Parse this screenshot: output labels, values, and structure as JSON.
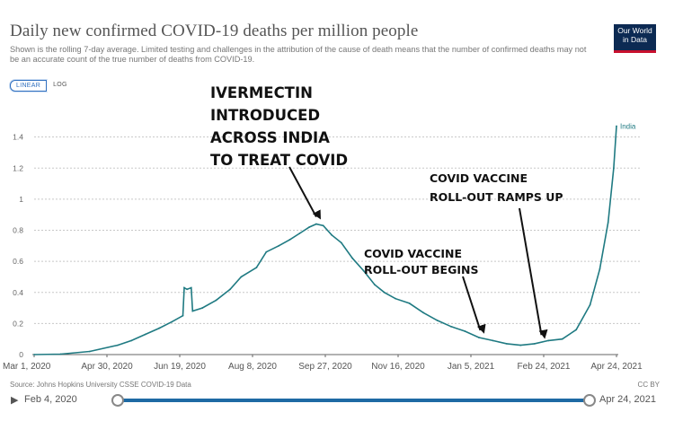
{
  "header": {
    "title": "Daily new confirmed COVID-19 deaths per million people",
    "subtitle": "Shown is the rolling 7-day average. Limited testing and challenges in the attribution of the cause of death means that the number of confirmed deaths may not be an accurate count of the true number of deaths from COVID-19.",
    "logo_line1": "Our World",
    "logo_line2": "in Data",
    "logo_colors": {
      "bg": "#0c2a53",
      "accent": "#c8102e"
    }
  },
  "controls": {
    "linear_label": "LINEAR",
    "log_label": "LOG",
    "selected": "LINEAR"
  },
  "footer": {
    "source": "Source: Johns Hopkins University CSSE COVID-19 Data",
    "license": "CC BY"
  },
  "timeline": {
    "start_label": "Feb 4, 2020",
    "end_label": "Apr 24, 2021",
    "play_icon": "play-icon",
    "track_color": "#1e6aa4"
  },
  "chart_data": {
    "type": "line",
    "title": "Daily new confirmed COVID-19 deaths per million people",
    "scale": "linear",
    "grid": true,
    "xlim": [
      "2020-03-01",
      "2021-04-24"
    ],
    "ylim": [
      0,
      1.6
    ],
    "x_ticks": [
      "Mar 1, 2020",
      "Apr 30, 2020",
      "Jun 19, 2020",
      "Aug 8, 2020",
      "Sep 27, 2020",
      "Nov 16, 2020",
      "Jan 5, 2021",
      "Feb 24, 2021",
      "Apr 24, 2021"
    ],
    "y_ticks": [
      0,
      0.2,
      0.4,
      0.6,
      0.8,
      1,
      1.2,
      1.4
    ],
    "y_tick_labels": [
      "0",
      "0.2",
      "0.4",
      "0.6",
      "0.8",
      "1",
      "1.2",
      "1.4"
    ],
    "line_color": "#1f7a82",
    "series": [
      {
        "name": "India",
        "x": [
          "2020-03-01",
          "2020-03-20",
          "2020-04-10",
          "2020-04-30",
          "2020-05-10",
          "2020-05-20",
          "2020-05-30",
          "2020-06-08",
          "2020-06-16",
          "2020-06-17",
          "2020-06-19",
          "2020-06-22",
          "2020-06-23",
          "2020-06-30",
          "2020-07-10",
          "2020-07-20",
          "2020-07-28",
          "2020-08-08",
          "2020-08-15",
          "2020-08-24",
          "2020-09-01",
          "2020-09-08",
          "2020-09-15",
          "2020-09-20",
          "2020-09-25",
          "2020-10-01",
          "2020-10-08",
          "2020-10-16",
          "2020-10-24",
          "2020-11-01",
          "2020-11-08",
          "2020-11-16",
          "2020-11-26",
          "2020-12-06",
          "2020-12-16",
          "2020-12-26",
          "2021-01-05",
          "2021-01-15",
          "2021-01-25",
          "2021-02-04",
          "2021-02-14",
          "2021-02-24",
          "2021-03-06",
          "2021-03-16",
          "2021-03-26",
          "2021-04-05",
          "2021-04-12",
          "2021-04-18",
          "2021-04-22",
          "2021-04-24"
        ],
        "y": [
          0,
          0.003,
          0.02,
          0.06,
          0.09,
          0.13,
          0.17,
          0.21,
          0.25,
          0.43,
          0.42,
          0.43,
          0.28,
          0.3,
          0.35,
          0.42,
          0.5,
          0.56,
          0.66,
          0.7,
          0.74,
          0.78,
          0.82,
          0.84,
          0.83,
          0.77,
          0.72,
          0.62,
          0.54,
          0.45,
          0.4,
          0.36,
          0.33,
          0.27,
          0.22,
          0.18,
          0.15,
          0.11,
          0.09,
          0.07,
          0.06,
          0.07,
          0.09,
          0.1,
          0.16,
          0.32,
          0.55,
          0.85,
          1.2,
          1.47
        ]
      }
    ],
    "series_label": "India",
    "annotations": [
      {
        "lines": [
          "IVERMECTIN",
          "INTRODUCED",
          "ACROSS INDIA",
          "TO TREAT COVID"
        ],
        "points_to": {
          "x": "2020-09-20",
          "y": 0.84
        }
      },
      {
        "lines": [
          "COVID VACCINE",
          "ROLL-OUT RAMPS UP"
        ],
        "points_to": {
          "x": "2021-03-01",
          "y": 0.08
        }
      },
      {
        "lines": [
          "COVID VACCINE",
          "ROLL-OUT BEGINS"
        ],
        "points_to": {
          "x": "2021-01-16",
          "y": 0.11
        }
      }
    ]
  }
}
